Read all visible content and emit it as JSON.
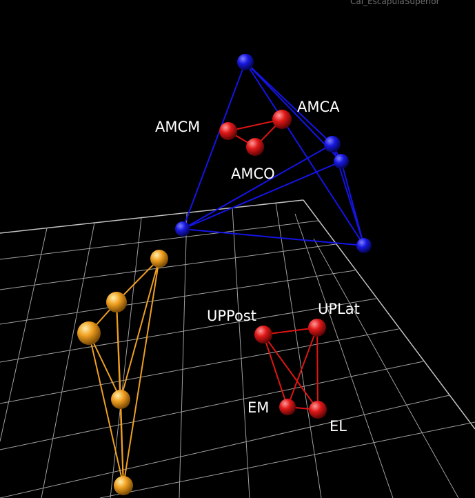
{
  "viewport": {
    "camera_label": "Cal_EscapulaSuperior"
  },
  "colors": {
    "background": "#000000",
    "grid": "#cfcfcf",
    "blue_cluster": "#1010d8",
    "red_cluster": "#e01010",
    "orange_cluster": "#f0a020"
  },
  "labels": {
    "amca": "AMCA",
    "amcm": "AMCM",
    "amco": "AMCO",
    "uppost": "UPPost",
    "uplat": "UPLat",
    "em": "EM",
    "el": "EL"
  }
}
